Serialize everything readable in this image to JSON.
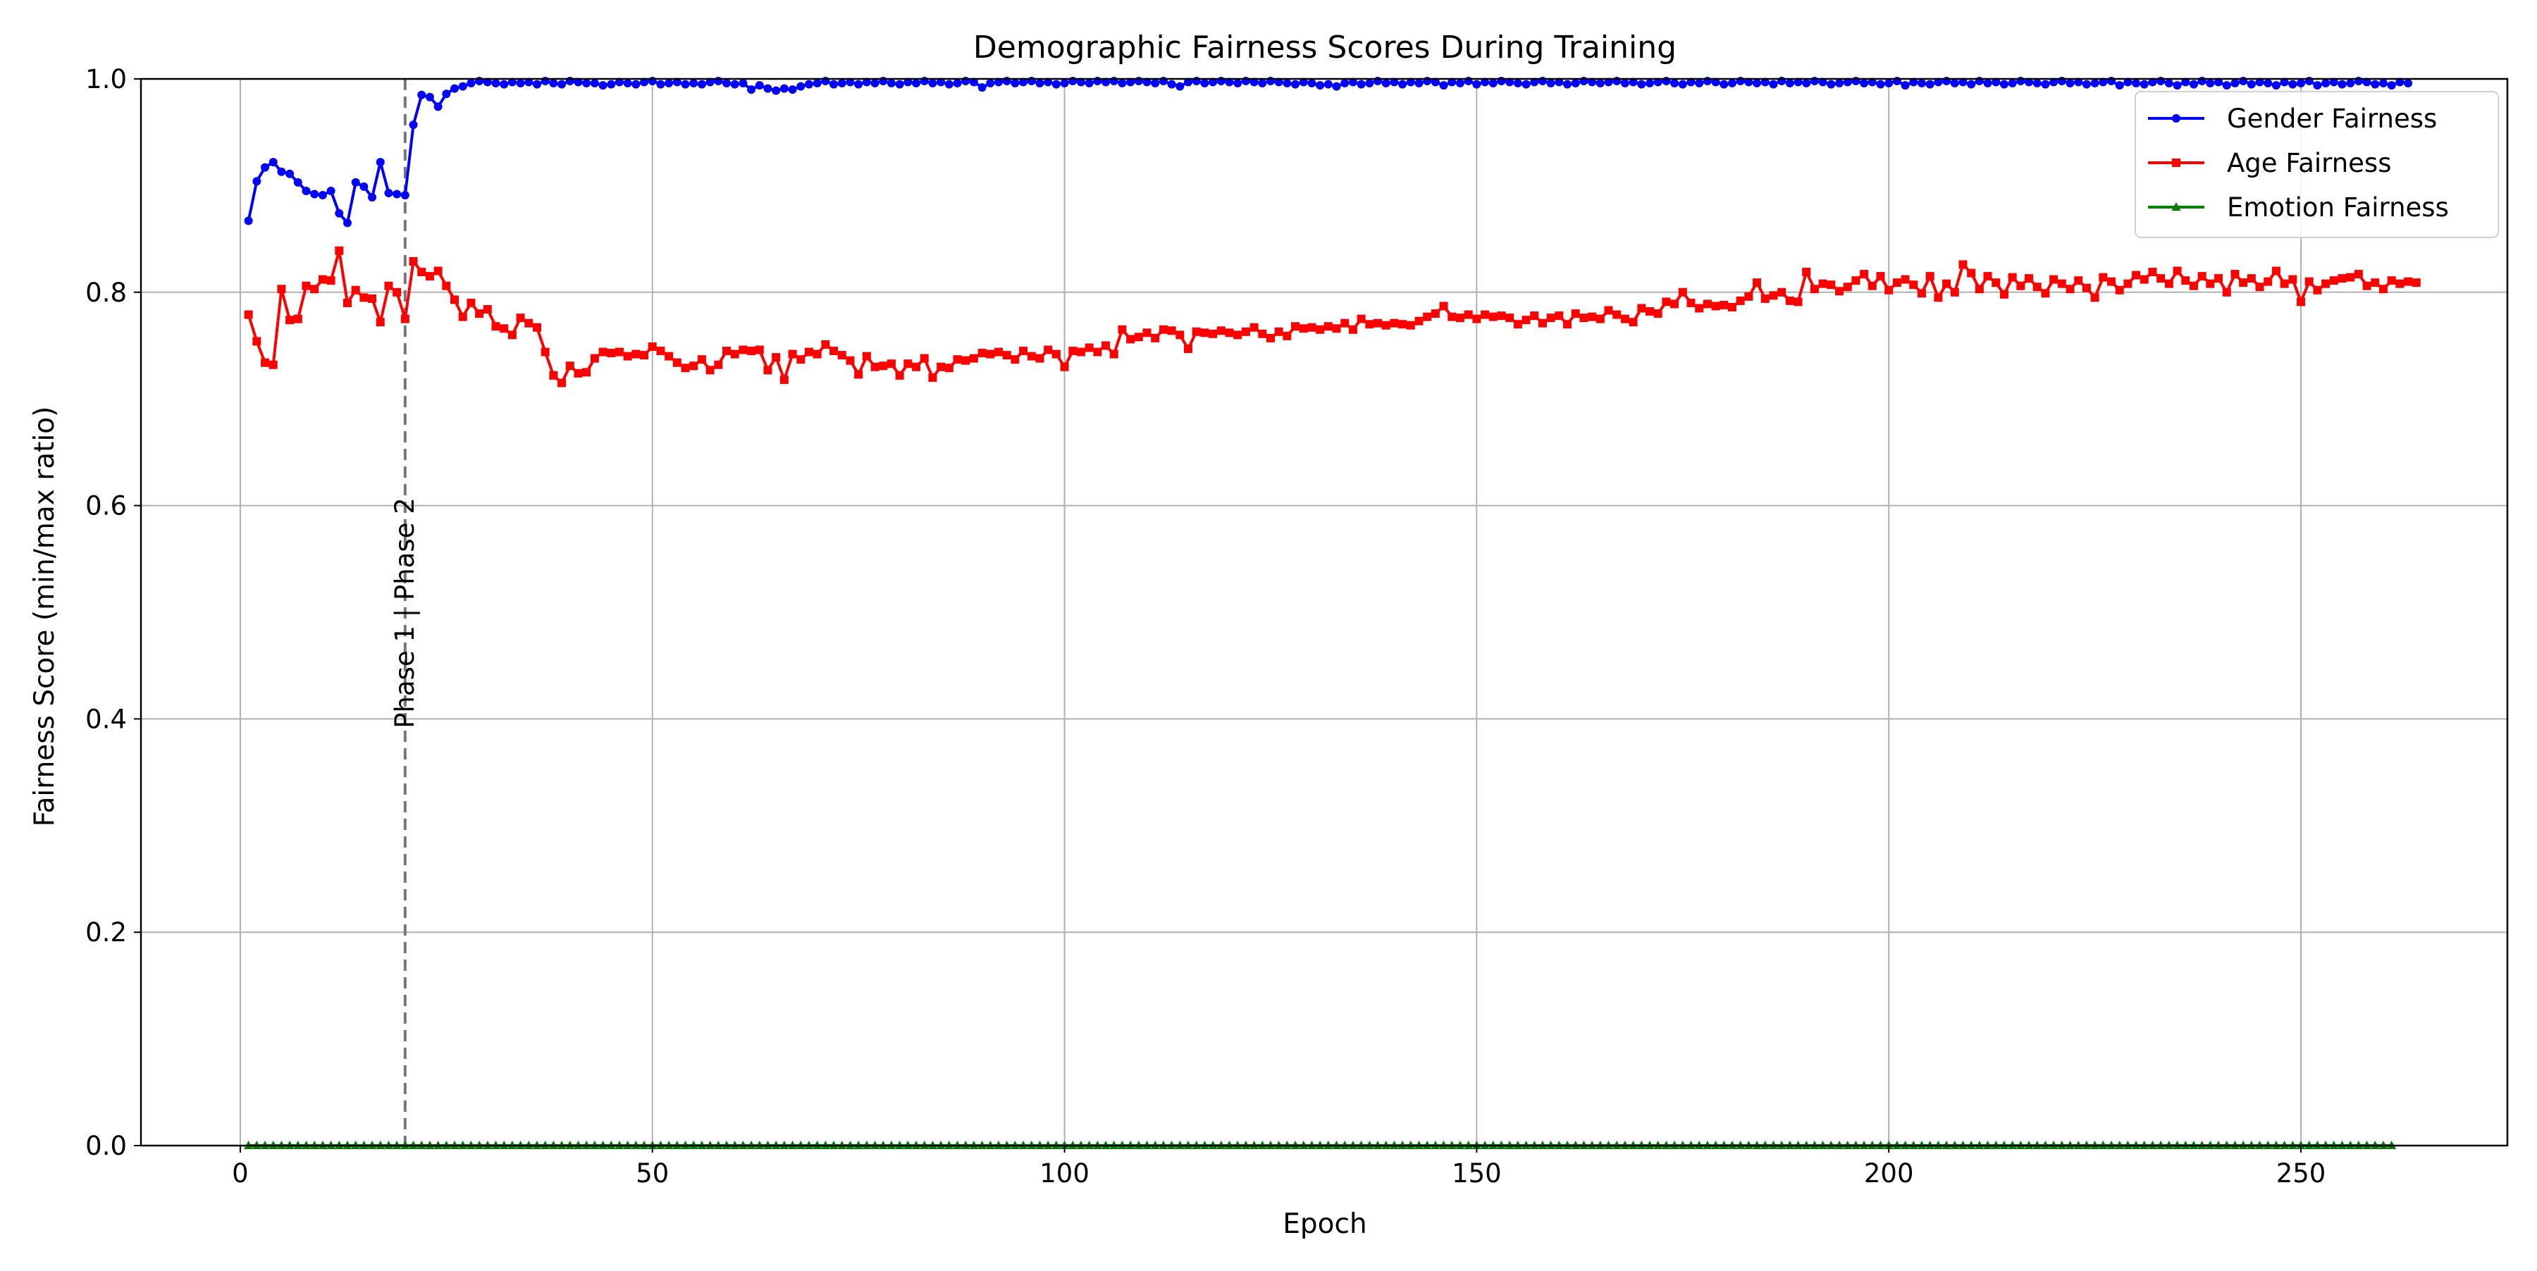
{
  "chart_data": {
    "type": "line",
    "title": "Demographic Fairness Scores During Training",
    "xlabel": "Epoch",
    "ylabel": "Fairness Score (min/max ratio)",
    "xlim": [
      -12.05,
      275.05
    ],
    "ylim": [
      0.0,
      1.0
    ],
    "xticks": [
      0,
      50,
      100,
      150,
      200,
      250
    ],
    "yticks": [
      0.0,
      0.2,
      0.4,
      0.6,
      0.8,
      1.0
    ],
    "xtick_labels": [
      "0",
      "50",
      "100",
      "150",
      "200",
      "250"
    ],
    "ytick_labels": [
      "0.0",
      "0.2",
      "0.4",
      "0.6",
      "0.8",
      "1.0"
    ],
    "grid": true,
    "legend_position": "top-right",
    "annotation": {
      "x": 20,
      "text": "Phase 1 | Phase 2",
      "line_color": "#777777"
    },
    "series": [
      {
        "name": "Gender Fairness",
        "color": "#0000ff",
        "marker": "circle",
        "x_start": 1,
        "x_step": 1,
        "values": [
          0.867,
          0.904,
          0.917,
          0.922,
          0.913,
          0.911,
          0.903,
          0.895,
          0.892,
          0.891,
          0.895,
          0.874,
          0.865,
          0.903,
          0.899,
          0.889,
          0.922,
          0.893,
          0.892,
          0.891,
          0.957,
          0.985,
          0.983,
          0.974,
          0.986,
          0.991,
          0.993,
          0.996,
          0.998,
          0.997,
          0.996,
          0.995,
          0.997,
          0.996,
          0.997,
          0.995,
          0.998,
          0.996,
          0.995,
          0.998,
          0.997,
          0.996,
          0.996,
          0.994,
          0.995,
          0.997,
          0.996,
          0.995,
          0.997,
          0.998,
          0.995,
          0.996,
          0.997,
          0.995,
          0.996,
          0.995,
          0.997,
          0.998,
          0.996,
          0.995,
          0.996,
          0.99,
          0.994,
          0.991,
          0.989,
          0.991,
          0.99,
          0.993,
          0.995,
          0.996,
          0.998,
          0.995,
          0.996,
          0.997,
          0.995,
          0.997,
          0.996,
          0.998,
          0.996,
          0.995,
          0.997,
          0.996,
          0.998,
          0.996,
          0.997,
          0.995,
          0.996,
          0.998,
          0.997,
          0.992,
          0.996,
          0.997,
          0.998,
          0.996,
          0.997,
          0.998,
          0.996,
          0.997,
          0.995,
          0.996,
          0.998,
          0.997,
          0.996,
          0.998,
          0.997,
          0.998,
          0.996,
          0.997,
          0.998,
          0.997,
          0.996,
          0.998,
          0.995,
          0.993,
          0.997,
          0.998,
          0.996,
          0.997,
          0.998,
          0.997,
          0.996,
          0.998,
          0.997,
          0.996,
          0.998,
          0.997,
          0.996,
          0.995,
          0.997,
          0.996,
          0.994,
          0.995,
          0.993,
          0.996,
          0.997,
          0.995,
          0.996,
          0.998,
          0.996,
          0.997,
          0.995,
          0.997,
          0.996,
          0.998,
          0.997,
          0.994,
          0.997,
          0.996,
          0.998,
          0.995,
          0.997,
          0.996,
          0.998,
          0.997,
          0.996,
          0.995,
          0.997,
          0.998,
          0.996,
          0.997,
          0.995,
          0.996,
          0.998,
          0.997,
          0.996,
          0.997,
          0.998,
          0.996,
          0.997,
          0.995,
          0.996,
          0.997,
          0.998,
          0.996,
          0.995,
          0.997,
          0.996,
          0.998,
          0.997,
          0.995,
          0.996,
          0.998,
          0.997,
          0.996,
          0.997,
          0.995,
          0.998,
          0.996,
          0.997,
          0.996,
          0.998,
          0.997,
          0.995,
          0.996,
          0.997,
          0.998,
          0.996,
          0.997,
          0.995,
          0.996,
          0.998,
          0.994,
          0.997,
          0.996,
          0.995,
          0.997,
          0.998,
          0.996,
          0.997,
          0.995,
          0.998,
          0.996,
          0.997,
          0.995,
          0.996,
          0.998,
          0.997,
          0.996,
          0.995,
          0.997,
          0.998,
          0.996,
          0.997,
          0.995,
          0.996,
          0.997,
          0.998,
          0.994,
          0.997,
          0.996,
          0.995,
          0.997,
          0.998,
          0.996,
          0.994,
          0.997,
          0.995,
          0.998,
          0.996,
          0.997,
          0.994,
          0.996,
          0.998,
          0.995,
          0.997,
          0.996,
          0.994,
          0.997,
          0.995,
          0.996,
          0.998,
          0.994,
          0.996,
          0.997,
          0.995,
          0.996,
          0.998,
          0.997,
          0.995,
          0.996,
          0.994,
          0.997,
          0.996
        ]
      },
      {
        "name": "Age Fairness",
        "color": "#ff0000",
        "marker": "square",
        "x_start": 1,
        "x_step": 1,
        "values": [
          0.779,
          0.754,
          0.734,
          0.732,
          0.803,
          0.774,
          0.775,
          0.806,
          0.803,
          0.812,
          0.811,
          0.839,
          0.79,
          0.802,
          0.795,
          0.794,
          0.772,
          0.806,
          0.8,
          0.775,
          0.829,
          0.819,
          0.815,
          0.82,
          0.806,
          0.793,
          0.777,
          0.79,
          0.78,
          0.784,
          0.768,
          0.766,
          0.76,
          0.776,
          0.771,
          0.767,
          0.744,
          0.722,
          0.715,
          0.731,
          0.724,
          0.725,
          0.738,
          0.744,
          0.743,
          0.744,
          0.74,
          0.742,
          0.741,
          0.749,
          0.745,
          0.74,
          0.734,
          0.729,
          0.731,
          0.737,
          0.727,
          0.732,
          0.745,
          0.742,
          0.746,
          0.745,
          0.746,
          0.727,
          0.739,
          0.718,
          0.742,
          0.737,
          0.744,
          0.742,
          0.751,
          0.745,
          0.741,
          0.736,
          0.723,
          0.74,
          0.73,
          0.731,
          0.733,
          0.722,
          0.733,
          0.73,
          0.738,
          0.72,
          0.73,
          0.729,
          0.737,
          0.736,
          0.738,
          0.743,
          0.742,
          0.744,
          0.741,
          0.737,
          0.745,
          0.74,
          0.738,
          0.746,
          0.742,
          0.73,
          0.745,
          0.744,
          0.748,
          0.744,
          0.75,
          0.742,
          0.765,
          0.756,
          0.758,
          0.762,
          0.757,
          0.765,
          0.764,
          0.76,
          0.747,
          0.763,
          0.762,
          0.761,
          0.764,
          0.762,
          0.76,
          0.763,
          0.767,
          0.761,
          0.757,
          0.763,
          0.759,
          0.768,
          0.766,
          0.767,
          0.765,
          0.768,
          0.766,
          0.771,
          0.765,
          0.775,
          0.77,
          0.771,
          0.769,
          0.771,
          0.77,
          0.769,
          0.773,
          0.777,
          0.78,
          0.787,
          0.777,
          0.776,
          0.779,
          0.775,
          0.779,
          0.777,
          0.778,
          0.776,
          0.77,
          0.774,
          0.778,
          0.771,
          0.776,
          0.778,
          0.77,
          0.78,
          0.776,
          0.777,
          0.775,
          0.783,
          0.779,
          0.775,
          0.772,
          0.785,
          0.782,
          0.78,
          0.791,
          0.789,
          0.8,
          0.79,
          0.785,
          0.789,
          0.787,
          0.788,
          0.786,
          0.792,
          0.796,
          0.809,
          0.794,
          0.797,
          0.8,
          0.792,
          0.791,
          0.819,
          0.803,
          0.808,
          0.807,
          0.801,
          0.805,
          0.811,
          0.817,
          0.806,
          0.815,
          0.802,
          0.809,
          0.812,
          0.807,
          0.799,
          0.815,
          0.795,
          0.808,
          0.8,
          0.826,
          0.818,
          0.803,
          0.815,
          0.809,
          0.798,
          0.814,
          0.806,
          0.813,
          0.805,
          0.799,
          0.812,
          0.808,
          0.803,
          0.811,
          0.804,
          0.795,
          0.814,
          0.81,
          0.802,
          0.808,
          0.816,
          0.812,
          0.819,
          0.813,
          0.808,
          0.82,
          0.811,
          0.806,
          0.815,
          0.808,
          0.813,
          0.8,
          0.817,
          0.809,
          0.813,
          0.805,
          0.81,
          0.82,
          0.808,
          0.812,
          0.791,
          0.81,
          0.802,
          0.808,
          0.811,
          0.813,
          0.814,
          0.817,
          0.806,
          0.809,
          0.803,
          0.811,
          0.808,
          0.81,
          0.809
        ]
      },
      {
        "name": "Emotion Fairness",
        "color": "#008000",
        "marker": "triangle",
        "x_start": 1,
        "x_step": 1,
        "values": [
          0,
          0,
          0,
          0,
          0,
          0,
          0,
          0,
          0,
          0,
          0,
          0,
          0,
          0,
          0,
          0,
          0,
          0,
          0,
          0,
          0,
          0,
          0,
          0,
          0,
          0,
          0,
          0,
          0,
          0,
          0,
          0,
          0,
          0,
          0,
          0,
          0,
          0,
          0,
          0,
          0,
          0,
          0,
          0,
          0,
          0,
          0,
          0,
          0,
          0,
          0,
          0,
          0,
          0,
          0,
          0,
          0,
          0,
          0,
          0,
          0,
          0,
          0,
          0,
          0,
          0,
          0,
          0,
          0,
          0,
          0,
          0,
          0,
          0,
          0,
          0,
          0,
          0,
          0,
          0,
          0,
          0,
          0,
          0,
          0,
          0,
          0,
          0,
          0,
          0,
          0,
          0,
          0,
          0,
          0,
          0,
          0,
          0,
          0,
          0,
          0,
          0,
          0,
          0,
          0,
          0,
          0,
          0,
          0,
          0,
          0,
          0,
          0,
          0,
          0,
          0,
          0,
          0,
          0,
          0,
          0,
          0,
          0,
          0,
          0,
          0,
          0,
          0,
          0,
          0,
          0,
          0,
          0,
          0,
          0,
          0,
          0,
          0,
          0,
          0,
          0,
          0,
          0,
          0,
          0,
          0,
          0,
          0,
          0,
          0,
          0,
          0,
          0,
          0,
          0,
          0,
          0,
          0,
          0,
          0,
          0,
          0,
          0,
          0,
          0,
          0,
          0,
          0,
          0,
          0,
          0,
          0,
          0,
          0,
          0,
          0,
          0,
          0,
          0,
          0,
          0,
          0,
          0,
          0,
          0,
          0,
          0,
          0,
          0,
          0,
          0,
          0,
          0,
          0,
          0,
          0,
          0,
          0,
          0,
          0,
          0,
          0,
          0,
          0,
          0,
          0,
          0,
          0,
          0,
          0,
          0,
          0,
          0,
          0,
          0,
          0,
          0,
          0,
          0,
          0,
          0,
          0,
          0,
          0,
          0,
          0,
          0,
          0,
          0,
          0,
          0,
          0,
          0,
          0,
          0,
          0,
          0,
          0,
          0,
          0,
          0,
          0,
          0,
          0,
          0,
          0,
          0,
          0,
          0,
          0,
          0,
          0,
          0,
          0,
          0,
          0,
          0,
          0,
          0,
          0,
          0
        ]
      }
    ]
  }
}
